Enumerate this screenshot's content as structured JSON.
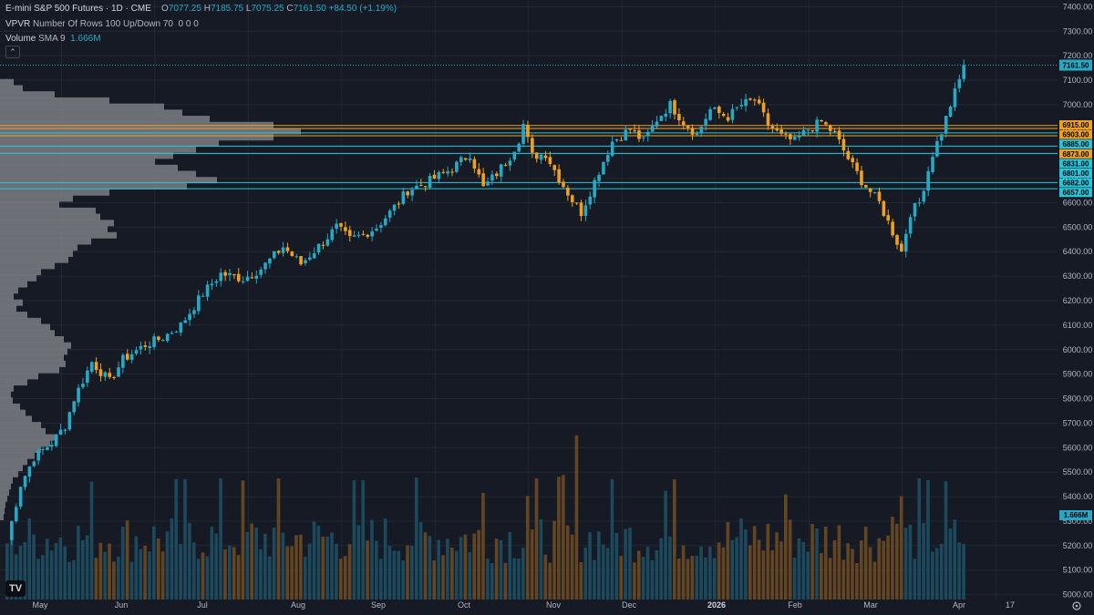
{
  "legend": {
    "title": "E-mini S&P 500 Futures · 1D · CME",
    "o_label": "O",
    "o_value": "7077.25",
    "h_label": "H",
    "h_value": "7185.75",
    "l_label": "L",
    "l_value": "7075.25",
    "c_label": "C",
    "c_value": "7161.50",
    "change": "+84.50 (+1.19%)",
    "vpvr_name": "VPVR",
    "vpvr_params": "Number Of Rows 100 Up/Down 70",
    "vpvr_values": "0 0 0",
    "volume_name": "Volume",
    "volume_params": "SMA 9",
    "volume_value": "1.666M"
  },
  "colors": {
    "background": "#161a25",
    "up": "#26a9c4",
    "down": "#f0a020",
    "grid": "#232732",
    "vpvr": "#7c7f86",
    "level_orange": "#f0a020",
    "level_cyan": "#26c6da"
  },
  "icons": {
    "collapse": "chevron-up-icon",
    "settings": "gear-icon",
    "logo": "tradingview-logo"
  },
  "collapse_glyph": "⌃",
  "logo_text": "TV",
  "chart_data": {
    "type": "candlestick",
    "ylim": [
      4980,
      7420
    ],
    "y_ticks": [
      5000,
      5100,
      5200,
      5300,
      5400,
      5500,
      5600,
      5700,
      5800,
      5900,
      6000,
      6100,
      6200,
      6300,
      6400,
      6500,
      6600,
      6700,
      6800,
      6900,
      7000,
      7100,
      7200,
      7300,
      7400
    ],
    "x_ticks": [
      "May",
      "Jun",
      "Jul",
      "Aug",
      "Sep",
      "Oct",
      "Nov",
      "Dec",
      "2026",
      "Feb",
      "Mar",
      "Apr",
      "17"
    ],
    "last_price": "7161.50",
    "volume_tag": "1.666M",
    "price_levels": [
      {
        "label": "6915.00",
        "value": 6915,
        "color": "orange"
      },
      {
        "label": "6903.00",
        "value": 6903,
        "color": "orange"
      },
      {
        "label": "6885.00",
        "value": 6885,
        "color": "cyan"
      },
      {
        "label": "6873.00",
        "value": 6873,
        "color": "orange"
      },
      {
        "label": "6831.00",
        "value": 6831,
        "color": "cyan"
      },
      {
        "label": "6801.00",
        "value": 6801,
        "color": "cyan"
      },
      {
        "label": "6682.00",
        "value": 6682,
        "color": "cyan"
      },
      {
        "label": "6657.00",
        "value": 6657,
        "color": "cyan"
      }
    ],
    "anchors": [
      [
        0,
        5220
      ],
      [
        3,
        5450
      ],
      [
        6,
        5560
      ],
      [
        10,
        5620
      ],
      [
        13,
        5690
      ],
      [
        15,
        5800
      ],
      [
        19,
        5950
      ],
      [
        23,
        5870
      ],
      [
        26,
        5960
      ],
      [
        31,
        6020
      ],
      [
        35,
        6050
      ],
      [
        39,
        6100
      ],
      [
        44,
        6230
      ],
      [
        48,
        6310
      ],
      [
        53,
        6290
      ],
      [
        57,
        6330
      ],
      [
        62,
        6420
      ],
      [
        66,
        6350
      ],
      [
        71,
        6440
      ],
      [
        74,
        6500
      ],
      [
        77,
        6450
      ],
      [
        80,
        6470
      ],
      [
        83,
        6500
      ],
      [
        86,
        6560
      ],
      [
        90,
        6650
      ],
      [
        95,
        6690
      ],
      [
        100,
        6740
      ],
      [
        104,
        6800
      ],
      [
        107,
        6660
      ],
      [
        110,
        6720
      ],
      [
        113,
        6790
      ],
      [
        115,
        6860
      ],
      [
        116,
        6920
      ],
      [
        118,
        6790
      ],
      [
        121,
        6800
      ],
      [
        124,
        6700
      ],
      [
        127,
        6610
      ],
      [
        129,
        6560
      ],
      [
        133,
        6730
      ],
      [
        136,
        6850
      ],
      [
        140,
        6900
      ],
      [
        143,
        6850
      ],
      [
        146,
        6940
      ],
      [
        149,
        7000
      ],
      [
        152,
        6930
      ],
      [
        155,
        6880
      ],
      [
        158,
        6980
      ],
      [
        162,
        6950
      ],
      [
        165,
        7000
      ],
      [
        168,
        7020
      ],
      [
        171,
        6920
      ],
      [
        174,
        6870
      ],
      [
        177,
        6850
      ],
      [
        180,
        6900
      ],
      [
        183,
        6930
      ],
      [
        186,
        6880
      ],
      [
        189,
        6780
      ],
      [
        192,
        6690
      ],
      [
        196,
        6600
      ],
      [
        199,
        6480
      ],
      [
        201,
        6400
      ],
      [
        203,
        6560
      ],
      [
        205,
        6600
      ],
      [
        208,
        6800
      ],
      [
        210,
        6890
      ],
      [
        212,
        7000
      ],
      [
        214,
        7100
      ],
      [
        215,
        7161
      ]
    ],
    "vpvr_rows": [
      {
        "price": 7090,
        "width": 15
      },
      {
        "price": 7065,
        "width": 25
      },
      {
        "price": 7040,
        "width": 60
      },
      {
        "price": 7015,
        "width": 120
      },
      {
        "price": 6990,
        "width": 180
      },
      {
        "price": 6965,
        "width": 200
      },
      {
        "price": 6940,
        "width": 230
      },
      {
        "price": 6915,
        "width": 300
      },
      {
        "price": 6890,
        "width": 330
      },
      {
        "price": 6865,
        "width": 300
      },
      {
        "price": 6840,
        "width": 240
      },
      {
        "price": 6815,
        "width": 215
      },
      {
        "price": 6790,
        "width": 190
      },
      {
        "price": 6765,
        "width": 170
      },
      {
        "price": 6740,
        "width": 195
      },
      {
        "price": 6715,
        "width": 215
      },
      {
        "price": 6690,
        "width": 238
      },
      {
        "price": 6665,
        "width": 205
      },
      {
        "price": 6640,
        "width": 120
      },
      {
        "price": 6615,
        "width": 80
      },
      {
        "price": 6590,
        "width": 65
      },
      {
        "price": 6565,
        "width": 105
      },
      {
        "price": 6540,
        "width": 110
      },
      {
        "price": 6515,
        "width": 125
      },
      {
        "price": 6490,
        "width": 118
      },
      {
        "price": 6465,
        "width": 128
      },
      {
        "price": 6440,
        "width": 100
      },
      {
        "price": 6415,
        "width": 85
      },
      {
        "price": 6390,
        "width": 80
      },
      {
        "price": 6365,
        "width": 75
      },
      {
        "price": 6340,
        "width": 60
      },
      {
        "price": 6315,
        "width": 45
      },
      {
        "price": 6290,
        "width": 40
      },
      {
        "price": 6265,
        "width": 30
      },
      {
        "price": 6240,
        "width": 20
      },
      {
        "price": 6215,
        "width": 15
      },
      {
        "price": 6190,
        "width": 25
      },
      {
        "price": 6165,
        "width": 18
      },
      {
        "price": 6140,
        "width": 30
      },
      {
        "price": 6115,
        "width": 45
      },
      {
        "price": 6090,
        "width": 55
      },
      {
        "price": 6065,
        "width": 60
      },
      {
        "price": 6040,
        "width": 70
      },
      {
        "price": 6015,
        "width": 78
      },
      {
        "price": 5990,
        "width": 74
      },
      {
        "price": 5965,
        "width": 70
      },
      {
        "price": 5940,
        "width": 72
      },
      {
        "price": 5915,
        "width": 65
      },
      {
        "price": 5890,
        "width": 42
      },
      {
        "price": 5865,
        "width": 30
      },
      {
        "price": 5840,
        "width": 15
      },
      {
        "price": 5815,
        "width": 12
      },
      {
        "price": 5790,
        "width": 14
      },
      {
        "price": 5765,
        "width": 22
      },
      {
        "price": 5740,
        "width": 28
      },
      {
        "price": 5715,
        "width": 35
      },
      {
        "price": 5690,
        "width": 45
      },
      {
        "price": 5665,
        "width": 50
      },
      {
        "price": 5640,
        "width": 60
      },
      {
        "price": 5615,
        "width": 55
      },
      {
        "price": 5590,
        "width": 45
      },
      {
        "price": 5565,
        "width": 38
      },
      {
        "price": 5540,
        "width": 30
      },
      {
        "price": 5515,
        "width": 25
      },
      {
        "price": 5490,
        "width": 20
      },
      {
        "price": 5465,
        "width": 14
      },
      {
        "price": 5440,
        "width": 12
      },
      {
        "price": 5415,
        "width": 10
      },
      {
        "price": 5390,
        "width": 8
      },
      {
        "price": 5365,
        "width": 6
      },
      {
        "price": 5340,
        "width": 5
      },
      {
        "price": 5315,
        "width": 4
      }
    ],
    "volume_max": 1.0
  }
}
